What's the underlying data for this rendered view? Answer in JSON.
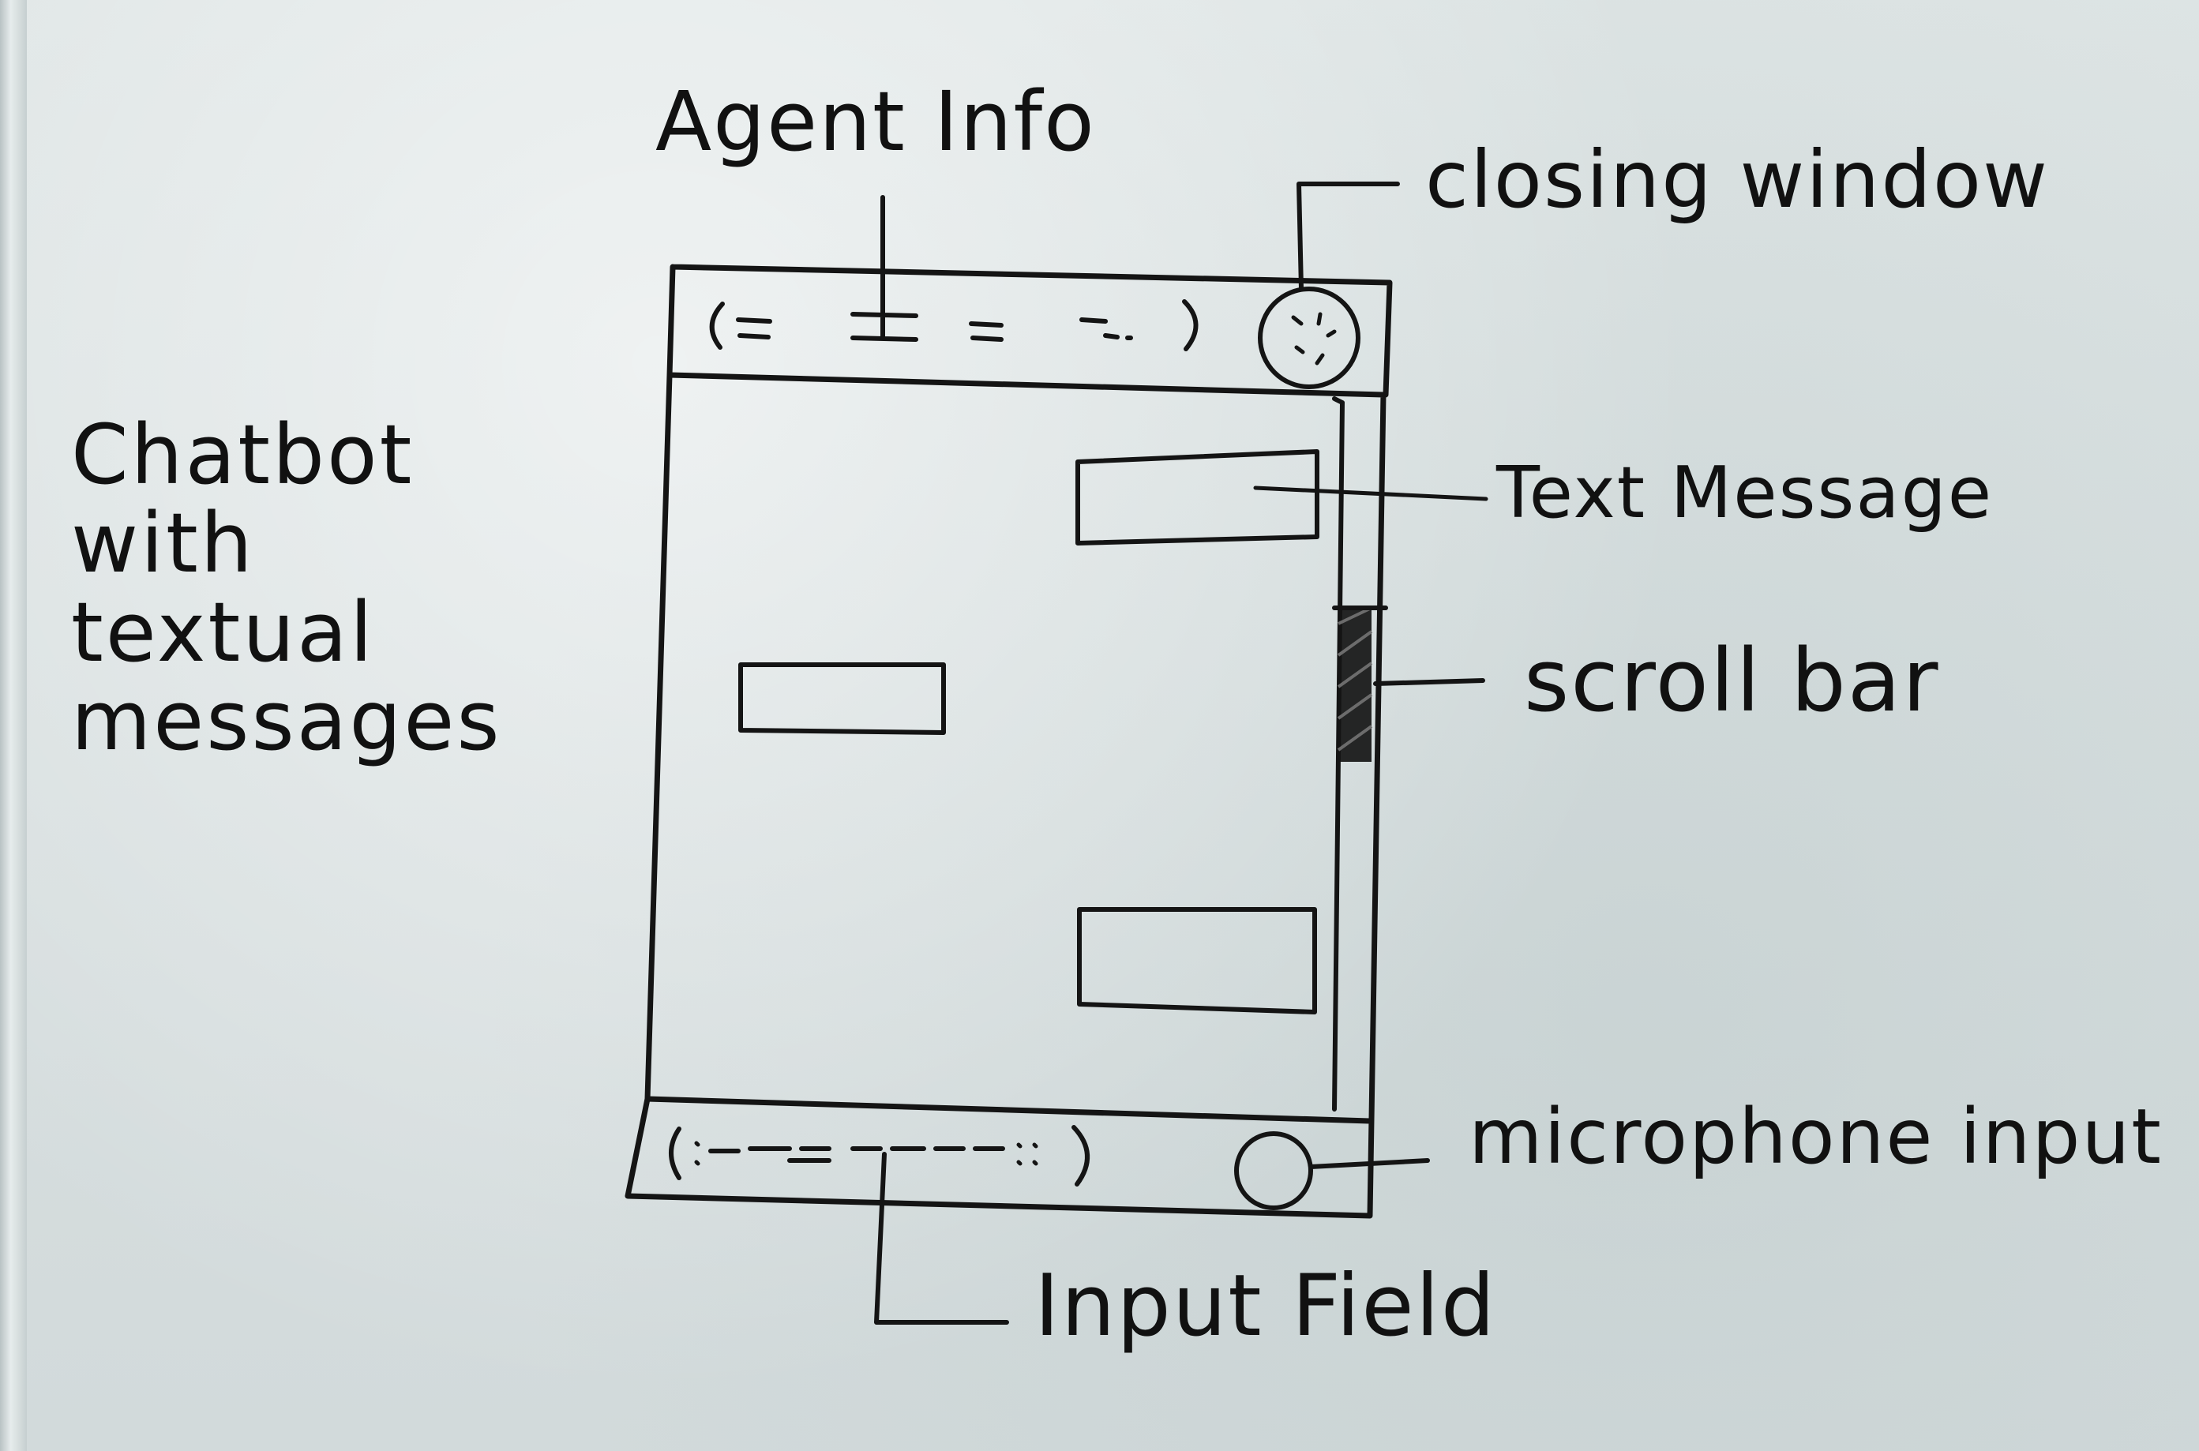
{
  "title_lines": [
    "Chatbot",
    "with",
    "textual",
    "messages"
  ],
  "labels": {
    "agent_info": "Agent Info",
    "closing_window": "closing window",
    "text_message": "Text Message",
    "scroll_bar": "scroll bar",
    "microphone_input": "microphone input",
    "input_field": "Input Field"
  },
  "colors": {
    "board": "#d9e0e0",
    "ink": "#141414"
  },
  "icons": {
    "close": "close-icon",
    "microphone": "microphone-icon"
  }
}
